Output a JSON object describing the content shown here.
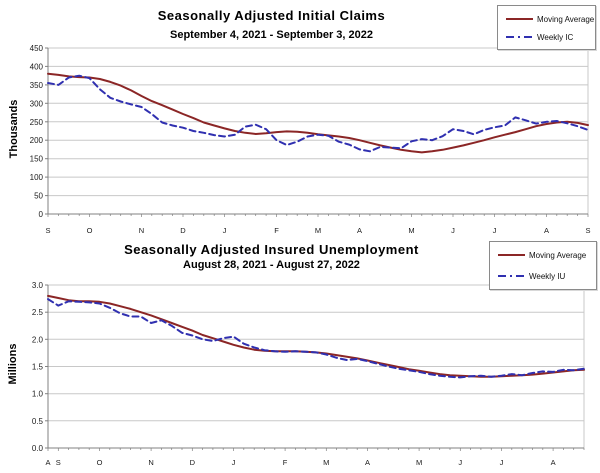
{
  "colors": {
    "moving_average": "#8B2626",
    "weekly": "#3030B0",
    "gridline": "#C8C8C8",
    "axis": "#808080",
    "tick_text": "#1a1a1a",
    "legend_border": "#8a8a8a",
    "background": "#FFFFFF"
  },
  "chart_data": [
    {
      "type": "line",
      "title": "Seasonally Adjusted Initial Claims",
      "subtitle": "September 4, 2021 - September 3, 2022",
      "ylabel": "Thousands",
      "xlabel": "",
      "ylim": [
        0,
        450
      ],
      "ytick_step": 50,
      "yticks": [
        "450",
        "400",
        "350",
        "300",
        "250",
        "200",
        "150",
        "100",
        "50",
        "0"
      ],
      "grid": true,
      "legend_position": "top-right",
      "n_points": 53,
      "x_unit": "weeks",
      "month_labels": [
        "S",
        "O",
        "N",
        "D",
        "J",
        "F",
        "M",
        "A",
        "M",
        "J",
        "J",
        "A",
        "S"
      ],
      "month_week_index": [
        0,
        4,
        9,
        13,
        17,
        22,
        26,
        30,
        35,
        39,
        43,
        48,
        52
      ],
      "series": [
        {
          "name": "Moving Average",
          "style": "solid",
          "color_key": "moving_average",
          "values": [
            380,
            377,
            373,
            371,
            370,
            366,
            358,
            348,
            335,
            320,
            306,
            295,
            283,
            271,
            260,
            248,
            240,
            232,
            225,
            220,
            217,
            219,
            222,
            224,
            223,
            220,
            216,
            213,
            210,
            206,
            200,
            193,
            186,
            180,
            174,
            170,
            167,
            170,
            174,
            180,
            186,
            193,
            200,
            208,
            215,
            222,
            230,
            238,
            244,
            248,
            250,
            247,
            241
          ]
        },
        {
          "name": "Weekly IC",
          "style": "dashed",
          "color_key": "weekly",
          "values": [
            355,
            350,
            370,
            375,
            368,
            338,
            315,
            305,
            297,
            290,
            271,
            248,
            240,
            234,
            225,
            220,
            214,
            210,
            215,
            237,
            242,
            230,
            200,
            187,
            196,
            210,
            215,
            212,
            196,
            188,
            175,
            170,
            182,
            180,
            178,
            197,
            203,
            200,
            211,
            230,
            225,
            216,
            228,
            235,
            240,
            262,
            254,
            245,
            250,
            252,
            246,
            238,
            228
          ]
        }
      ]
    },
    {
      "type": "line",
      "title": "Seasonally Adjusted Insured Unemployment",
      "subtitle": "August 28, 2021 - August 27, 2022",
      "ylabel": "Millions",
      "xlabel": "",
      "ylim": [
        0.0,
        3.0
      ],
      "ytick_step": 0.5,
      "yticks": [
        "3.0",
        "2.5",
        "2.0",
        "1.5",
        "1.0",
        "0.5",
        "0.0"
      ],
      "grid": true,
      "legend_position": "top-right",
      "n_points": 53,
      "x_unit": "weeks",
      "month_labels": [
        "A",
        "S",
        "O",
        "N",
        "D",
        "J",
        "F",
        "M",
        "A",
        "M",
        "J",
        "J",
        "A"
      ],
      "month_week_index": [
        0,
        1,
        5,
        10,
        14,
        18,
        23,
        27,
        31,
        36,
        40,
        44,
        49
      ],
      "series": [
        {
          "name": "Moving Average",
          "style": "solid",
          "color_key": "moving_average",
          "values": [
            2.8,
            2.76,
            2.72,
            2.7,
            2.7,
            2.69,
            2.66,
            2.61,
            2.56,
            2.5,
            2.44,
            2.37,
            2.3,
            2.23,
            2.16,
            2.08,
            2.02,
            1.96,
            1.9,
            1.85,
            1.81,
            1.79,
            1.78,
            1.78,
            1.78,
            1.77,
            1.76,
            1.74,
            1.71,
            1.68,
            1.65,
            1.61,
            1.57,
            1.53,
            1.49,
            1.45,
            1.42,
            1.39,
            1.36,
            1.34,
            1.33,
            1.32,
            1.31,
            1.31,
            1.32,
            1.33,
            1.34,
            1.35,
            1.37,
            1.39,
            1.41,
            1.43,
            1.44
          ]
        },
        {
          "name": "Weekly IU",
          "style": "dashed",
          "color_key": "weekly",
          "values": [
            2.74,
            2.62,
            2.7,
            2.69,
            2.68,
            2.66,
            2.58,
            2.48,
            2.42,
            2.42,
            2.3,
            2.35,
            2.25,
            2.12,
            2.07,
            2.0,
            1.97,
            2.02,
            2.05,
            1.92,
            1.85,
            1.8,
            1.78,
            1.77,
            1.78,
            1.77,
            1.76,
            1.72,
            1.66,
            1.62,
            1.64,
            1.6,
            1.55,
            1.5,
            1.46,
            1.43,
            1.4,
            1.36,
            1.33,
            1.31,
            1.3,
            1.32,
            1.33,
            1.31,
            1.33,
            1.36,
            1.34,
            1.38,
            1.41,
            1.4,
            1.44,
            1.43,
            1.46
          ]
        }
      ]
    }
  ]
}
